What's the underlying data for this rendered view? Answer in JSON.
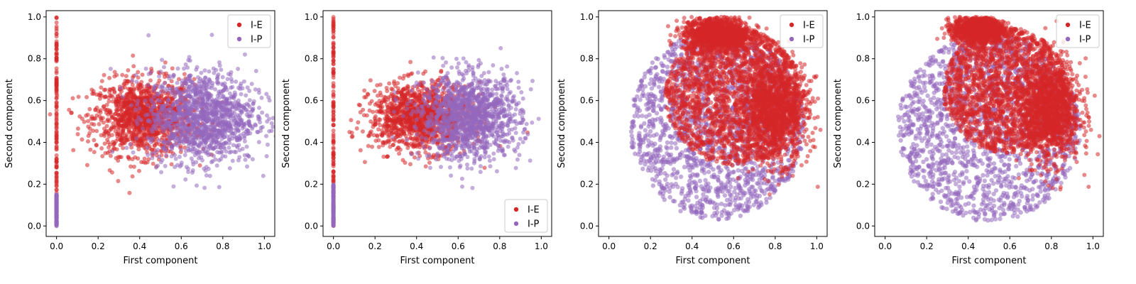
{
  "colors": {
    "I-E": "#d62728",
    "I-P": "#9467bd"
  },
  "chart_data": [
    {
      "type": "scatter",
      "xlabel": "First component",
      "ylabel": "Second component",
      "xlim": [
        -0.05,
        1.05
      ],
      "ylim": [
        -0.05,
        1.03
      ],
      "xticks": [
        "0.0",
        "0.2",
        "0.4",
        "0.6",
        "0.8",
        "1.0"
      ],
      "yticks": [
        "0.0",
        "0.2",
        "0.4",
        "0.6",
        "0.8",
        "1.0"
      ],
      "legend_position": "top-right",
      "series": [
        {
          "name": "I-E",
          "clusters": [
            {
              "kind": "vertical-line",
              "x": 0.0,
              "y_range": [
                0.0,
                1.0
              ]
            },
            {
              "kind": "blob",
              "center": [
                0.42,
                0.52
              ],
              "spread": [
                0.12,
                0.09
              ]
            }
          ]
        },
        {
          "name": "I-P",
          "clusters": [
            {
              "kind": "vertical-line",
              "x": 0.0,
              "y_range": [
                0.0,
                0.15
              ]
            },
            {
              "kind": "blob",
              "center": [
                0.7,
                0.52
              ],
              "spread": [
                0.13,
                0.11
              ]
            }
          ]
        }
      ]
    },
    {
      "type": "scatter",
      "xlabel": "First component",
      "ylabel": "Second component",
      "xlim": [
        -0.05,
        1.05
      ],
      "ylim": [
        -0.05,
        1.03
      ],
      "xticks": [
        "0.0",
        "0.2",
        "0.4",
        "0.6",
        "0.8",
        "1.0"
      ],
      "yticks": [
        "0.0",
        "0.2",
        "0.4",
        "0.6",
        "0.8",
        "1.0"
      ],
      "legend_position": "bottom-right",
      "series": [
        {
          "name": "I-E",
          "clusters": [
            {
              "kind": "vertical-line",
              "x": 0.0,
              "y_range": [
                0.0,
                1.0
              ]
            },
            {
              "kind": "blob",
              "center": [
                0.42,
                0.52
              ],
              "spread": [
                0.12,
                0.08
              ]
            }
          ]
        },
        {
          "name": "I-P",
          "clusters": [
            {
              "kind": "vertical-line",
              "x": 0.0,
              "y_range": [
                0.0,
                0.2
              ]
            },
            {
              "kind": "blob",
              "center": [
                0.66,
                0.52
              ],
              "spread": [
                0.12,
                0.1
              ]
            }
          ]
        }
      ]
    },
    {
      "type": "scatter",
      "xlabel": "First component",
      "ylabel": "Second component",
      "xlim": [
        -0.05,
        1.05
      ],
      "ylim": [
        -0.05,
        1.03
      ],
      "xticks": [
        "0.0",
        "0.2",
        "0.4",
        "0.6",
        "0.8",
        "1.0"
      ],
      "yticks": [
        "0.0",
        "0.2",
        "0.4",
        "0.6",
        "0.8",
        "1.0"
      ],
      "legend_position": "top-right",
      "series": [
        {
          "name": "I-P",
          "clusters": [
            {
              "kind": "disk",
              "center": [
                0.52,
                0.48
              ],
              "radius": [
                0.42,
                0.45
              ]
            }
          ]
        },
        {
          "name": "I-E",
          "clusters": [
            {
              "kind": "disk",
              "center": [
                0.6,
                0.62
              ],
              "radius": [
                0.33,
                0.33
              ]
            },
            {
              "kind": "blob",
              "center": [
                0.52,
                0.92
              ],
              "spread": [
                0.08,
                0.04
              ]
            },
            {
              "kind": "blob",
              "center": [
                0.8,
                0.55
              ],
              "spread": [
                0.08,
                0.12
              ]
            }
          ]
        }
      ]
    },
    {
      "type": "scatter",
      "xlabel": "First component",
      "ylabel": "Second component",
      "xlim": [
        -0.05,
        1.05
      ],
      "ylim": [
        -0.05,
        1.03
      ],
      "xticks": [
        "0.0",
        "0.2",
        "0.4",
        "0.6",
        "0.8",
        "1.0"
      ],
      "yticks": [
        "0.0",
        "0.2",
        "0.4",
        "0.6",
        "0.8",
        "1.0"
      ],
      "legend_position": "top-right",
      "series": [
        {
          "name": "I-P",
          "clusters": [
            {
              "kind": "disk",
              "center": [
                0.5,
                0.47
              ],
              "radius": [
                0.44,
                0.45
              ]
            }
          ]
        },
        {
          "name": "I-E",
          "clusters": [
            {
              "kind": "disk",
              "center": [
                0.58,
                0.65
              ],
              "radius": [
                0.3,
                0.3
              ]
            },
            {
              "kind": "blob",
              "center": [
                0.45,
                0.94
              ],
              "spread": [
                0.06,
                0.03
              ]
            },
            {
              "kind": "blob",
              "center": [
                0.8,
                0.55
              ],
              "spread": [
                0.07,
                0.12
              ]
            }
          ]
        }
      ]
    }
  ]
}
